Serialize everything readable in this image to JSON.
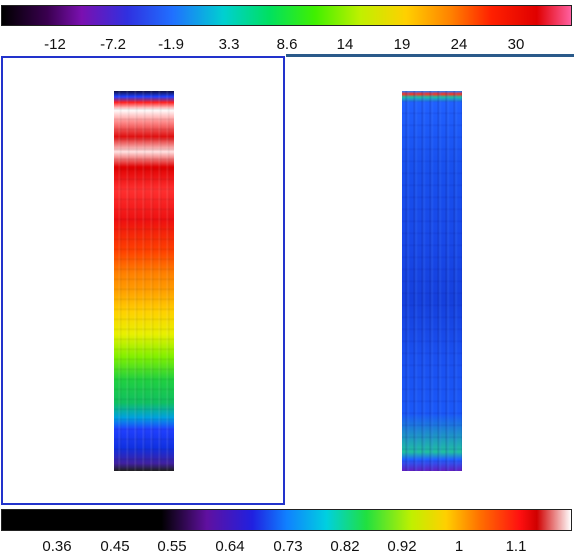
{
  "top_colorbar": {
    "tick_labels": [
      "-12",
      "-7.2",
      "-1.9",
      "3.3",
      "8.6",
      "14",
      "19",
      "24",
      "30"
    ]
  },
  "bottom_colorbar": {
    "tick_labels": [
      "0.36",
      "0.45",
      "0.55",
      "0.64",
      "0.73",
      "0.82",
      "0.92",
      "1",
      "1.1"
    ]
  },
  "panels": {
    "left": {
      "selected": true,
      "accent_color": "#2233cc"
    },
    "right": {
      "selected": false
    }
  }
}
